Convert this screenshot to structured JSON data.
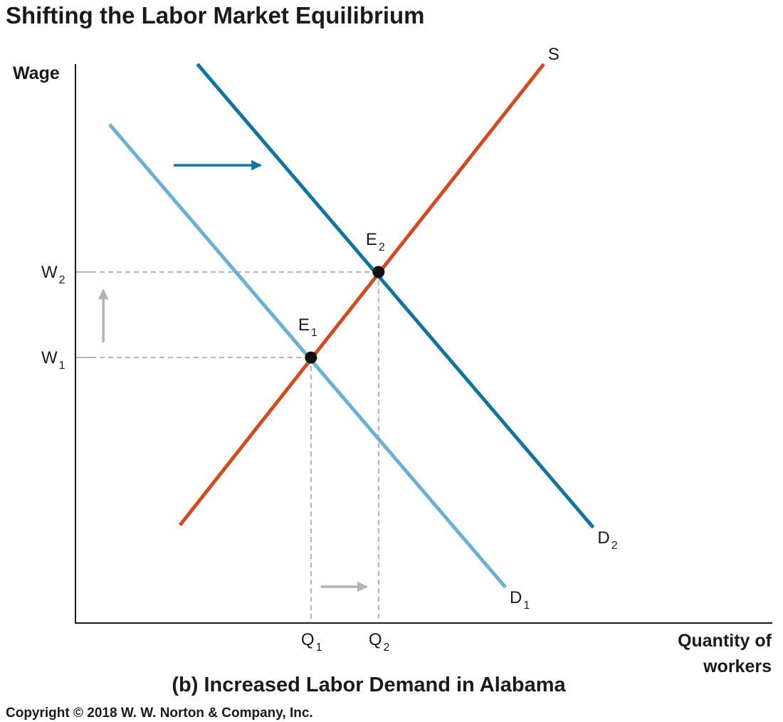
{
  "title": "Shifting the Labor Market Equilibrium",
  "caption": "(b) Increased Labor Demand in Alabama",
  "copyright": "Copyright © 2018 W. W. Norton & Company, Inc.",
  "colors": {
    "supply": "#d24a1e",
    "demand_old": "#6aafd4",
    "demand_new": "#0e74a0",
    "shift_arrow": "#0e74a0",
    "change_arrow": "#b3b3b3",
    "guide": "#b3b3b3",
    "point": "#111111",
    "axis": "#1a1a1a"
  },
  "chart_data": {
    "type": "line",
    "xlabel_lines": [
      "Quantity of",
      "workers"
    ],
    "ylabel": "Wage",
    "xlim": [
      0,
      100
    ],
    "ylim": [
      0,
      100
    ],
    "series": [
      {
        "name": "S",
        "label_sub": "",
        "role": "supply",
        "x": [
          15,
          67.2
        ],
        "y": [
          17.5,
          100
        ]
      },
      {
        "name": "D",
        "label_sub": "1",
        "role": "demand_old",
        "x": [
          4.9,
          61.7
        ],
        "y": [
          89.2,
          6.4
        ]
      },
      {
        "name": "D",
        "label_sub": "2",
        "role": "demand_new",
        "x": [
          17.5,
          74.3
        ],
        "y": [
          100,
          17.1
        ]
      }
    ],
    "points": [
      {
        "name": "E",
        "sub": "1",
        "x": 33.8,
        "y": 47.5
      },
      {
        "name": "E",
        "sub": "2",
        "x": 43.5,
        "y": 62.8
      }
    ],
    "x_ticks": [
      {
        "label": "Q",
        "sub": "1",
        "x": 33.8
      },
      {
        "label": "Q",
        "sub": "2",
        "x": 43.5
      }
    ],
    "y_ticks": [
      {
        "label": "W",
        "sub": "1",
        "y": 47.5
      },
      {
        "label": "W",
        "sub": "2",
        "y": 62.8
      }
    ],
    "arrows": [
      {
        "kind": "shift",
        "from": [
          14.1,
          81.9
        ],
        "to": [
          26.6,
          81.9
        ]
      },
      {
        "kind": "change",
        "from": [
          4.0,
          50.2
        ],
        "to": [
          4.0,
          59.6
        ]
      },
      {
        "kind": "change",
        "from": [
          35.2,
          6.5
        ],
        "to": [
          41.8,
          6.5
        ]
      }
    ]
  }
}
